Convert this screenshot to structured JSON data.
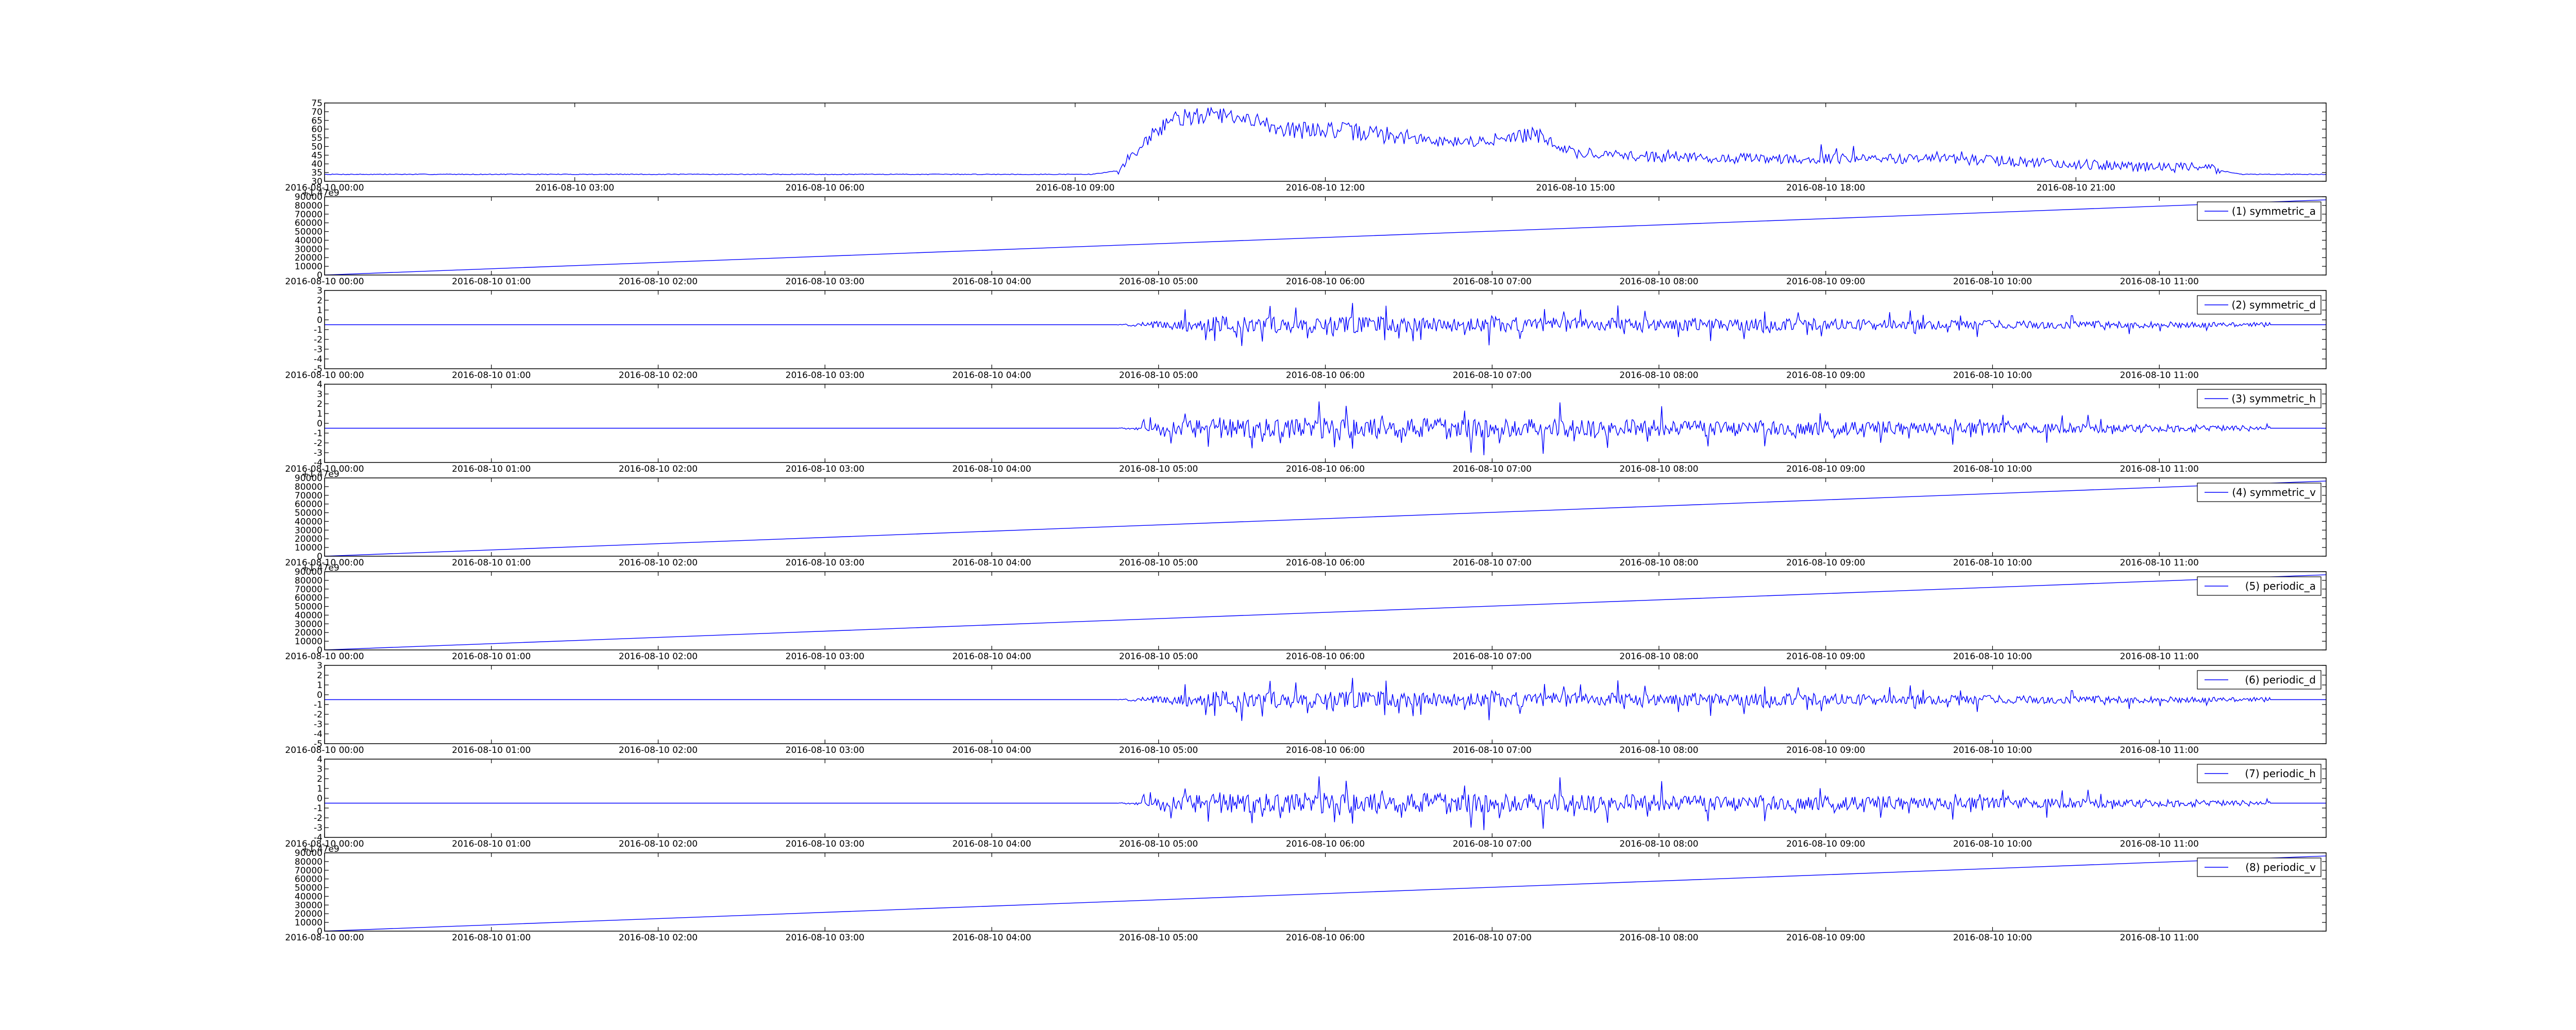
{
  "colors": {
    "line": "#0000ff",
    "axes": "#000000",
    "background": "#ffffff",
    "legend_border": "#000000"
  },
  "chart_data": [
    {
      "type": "line",
      "panel": "top",
      "legend": null,
      "offset_label": "",
      "ylim": [
        30,
        75
      ],
      "yticks": [
        "30",
        "35",
        "40",
        "45",
        "50",
        "55",
        "60",
        "65",
        "70",
        "75"
      ],
      "xticks": [
        "2016-08-10 00:00",
        "2016-08-10 03:00",
        "2016-08-10 06:00",
        "2016-08-10 09:00",
        "2016-08-10 12:00",
        "2016-08-10 15:00",
        "2016-08-10 18:00",
        "2016-08-10 21:00"
      ],
      "x_start": "2016-08-10 00:00",
      "x_end": "2016-08-11 00:00",
      "series": [
        {
          "x": [
            "2016-08-10 00:00",
            "2016-08-10 09:12",
            "2016-08-10 09:30",
            "2016-08-10 09:50",
            "2016-08-10 10:10",
            "2016-08-10 10:40",
            "2016-08-10 11:10",
            "2016-08-10 11:40",
            "2016-08-10 12:00",
            "2016-08-10 12:40",
            "2016-08-10 13:20",
            "2016-08-10 14:00",
            "2016-08-10 14:30",
            "2016-08-10 15:00",
            "2016-08-10 16:00",
            "2016-08-10 17:00",
            "2016-08-10 18:00",
            "2016-08-10 19:00",
            "2016-08-10 20:00",
            "2016-08-10 21:00",
            "2016-08-10 22:00",
            "2016-08-10 22:30",
            "2016-08-10 23:00",
            "2016-08-11 00:00"
          ],
          "y": [
            34,
            34,
            36,
            52,
            66,
            68,
            64,
            59,
            60,
            57,
            53,
            53,
            57,
            46,
            44,
            43,
            43,
            43,
            42,
            40,
            38,
            38,
            34,
            34
          ]
        }
      ]
    },
    {
      "type": "line",
      "panel": "symmetric_a",
      "legend": "(1) symmetric_a",
      "offset_label": "+1.47e9",
      "ylim": [
        0,
        90000
      ],
      "yticks": [
        "0",
        "10000",
        "20000",
        "30000",
        "40000",
        "50000",
        "60000",
        "70000",
        "80000",
        "90000"
      ],
      "xticks": [
        "2016-08-10 00:00",
        "2016-08-10 01:00",
        "2016-08-10 02:00",
        "2016-08-10 03:00",
        "2016-08-10 04:00",
        "2016-08-10 05:00",
        "2016-08-10 06:00",
        "2016-08-10 07:00",
        "2016-08-10 08:00",
        "2016-08-10 09:00",
        "2016-08-10 10:00",
        "2016-08-10 11:00"
      ],
      "x_start": "2016-08-10 00:00",
      "x_end": "2016-08-10 12:00",
      "series": [
        {
          "name": "(1) symmetric_a",
          "x": [
            "2016-08-10 00:00",
            "2016-08-10 12:00"
          ],
          "y": [
            0,
            86400
          ]
        }
      ]
    },
    {
      "type": "line",
      "panel": "symmetric_d",
      "legend": "(2) symmetric_d",
      "offset_label": "",
      "ylim": [
        -5,
        3
      ],
      "yticks": [
        "-5",
        "-4",
        "-3",
        "-2",
        "-1",
        "0",
        "1",
        "2",
        "3"
      ],
      "xticks": [
        "2016-08-10 00:00",
        "2016-08-10 01:00",
        "2016-08-10 02:00",
        "2016-08-10 03:00",
        "2016-08-10 04:00",
        "2016-08-10 05:00",
        "2016-08-10 06:00",
        "2016-08-10 07:00",
        "2016-08-10 08:00",
        "2016-08-10 09:00",
        "2016-08-10 10:00",
        "2016-08-10 11:00"
      ],
      "x_start": "2016-08-10 00:00",
      "x_end": "2016-08-10 12:00",
      "noise": {
        "start": "2016-08-10 04:45",
        "end": "2016-08-10 11:40",
        "baseline": -0.5,
        "max_amplitude": 2.5,
        "seed": 11
      },
      "series": [
        {
          "name": "(2) symmetric_d"
        }
      ]
    },
    {
      "type": "line",
      "panel": "symmetric_h",
      "legend": "(3) symmetric_h",
      "offset_label": "",
      "ylim": [
        -4,
        4
      ],
      "yticks": [
        "-4",
        "-3",
        "-2",
        "-1",
        "0",
        "1",
        "2",
        "3",
        "4"
      ],
      "xticks": [
        "2016-08-10 00:00",
        "2016-08-10 01:00",
        "2016-08-10 02:00",
        "2016-08-10 03:00",
        "2016-08-10 04:00",
        "2016-08-10 05:00",
        "2016-08-10 06:00",
        "2016-08-10 07:00",
        "2016-08-10 08:00",
        "2016-08-10 09:00",
        "2016-08-10 10:00",
        "2016-08-10 11:00"
      ],
      "x_start": "2016-08-10 00:00",
      "x_end": "2016-08-10 12:00",
      "noise": {
        "start": "2016-08-10 04:45",
        "end": "2016-08-10 11:40",
        "baseline": -0.5,
        "max_amplitude": 3.2,
        "seed": 23
      },
      "series": [
        {
          "name": "(3) symmetric_h"
        }
      ]
    },
    {
      "type": "line",
      "panel": "symmetric_v",
      "legend": "(4) symmetric_v",
      "offset_label": "+1.47e9",
      "ylim": [
        0,
        90000
      ],
      "yticks": [
        "0",
        "10000",
        "20000",
        "30000",
        "40000",
        "50000",
        "60000",
        "70000",
        "80000",
        "90000"
      ],
      "xticks": [
        "2016-08-10 00:00",
        "2016-08-10 01:00",
        "2016-08-10 02:00",
        "2016-08-10 03:00",
        "2016-08-10 04:00",
        "2016-08-10 05:00",
        "2016-08-10 06:00",
        "2016-08-10 07:00",
        "2016-08-10 08:00",
        "2016-08-10 09:00",
        "2016-08-10 10:00",
        "2016-08-10 11:00"
      ],
      "x_start": "2016-08-10 00:00",
      "x_end": "2016-08-10 12:00",
      "series": [
        {
          "name": "(4) symmetric_v",
          "x": [
            "2016-08-10 00:00",
            "2016-08-10 12:00"
          ],
          "y": [
            0,
            86400
          ]
        }
      ]
    },
    {
      "type": "line",
      "panel": "periodic_a",
      "legend": "(5) periodic_a",
      "offset_label": "+1.47e9",
      "ylim": [
        0,
        90000
      ],
      "yticks": [
        "0",
        "10000",
        "20000",
        "30000",
        "40000",
        "50000",
        "60000",
        "70000",
        "80000",
        "90000"
      ],
      "xticks": [
        "2016-08-10 00:00",
        "2016-08-10 01:00",
        "2016-08-10 02:00",
        "2016-08-10 03:00",
        "2016-08-10 04:00",
        "2016-08-10 05:00",
        "2016-08-10 06:00",
        "2016-08-10 07:00",
        "2016-08-10 08:00",
        "2016-08-10 09:00",
        "2016-08-10 10:00",
        "2016-08-10 11:00"
      ],
      "x_start": "2016-08-10 00:00",
      "x_end": "2016-08-10 12:00",
      "series": [
        {
          "name": "(5) periodic_a",
          "x": [
            "2016-08-10 00:00",
            "2016-08-10 12:00"
          ],
          "y": [
            0,
            86400
          ]
        }
      ]
    },
    {
      "type": "line",
      "panel": "periodic_d",
      "legend": "(6) periodic_d",
      "offset_label": "",
      "ylim": [
        -5,
        3
      ],
      "yticks": [
        "-5",
        "-4",
        "-3",
        "-2",
        "-1",
        "0",
        "1",
        "2",
        "3"
      ],
      "xticks": [
        "2016-08-10 00:00",
        "2016-08-10 01:00",
        "2016-08-10 02:00",
        "2016-08-10 03:00",
        "2016-08-10 04:00",
        "2016-08-10 05:00",
        "2016-08-10 06:00",
        "2016-08-10 07:00",
        "2016-08-10 08:00",
        "2016-08-10 09:00",
        "2016-08-10 10:00",
        "2016-08-10 11:00"
      ],
      "x_start": "2016-08-10 00:00",
      "x_end": "2016-08-10 12:00",
      "noise": {
        "start": "2016-08-10 04:45",
        "end": "2016-08-10 11:40",
        "baseline": -0.5,
        "max_amplitude": 2.5,
        "seed": 11
      },
      "series": [
        {
          "name": "(6) periodic_d"
        }
      ]
    },
    {
      "type": "line",
      "panel": "periodic_h",
      "legend": "(7) periodic_h",
      "offset_label": "",
      "ylim": [
        -4,
        4
      ],
      "yticks": [
        "-4",
        "-3",
        "-2",
        "-1",
        "0",
        "1",
        "2",
        "3",
        "4"
      ],
      "xticks": [
        "2016-08-10 00:00",
        "2016-08-10 01:00",
        "2016-08-10 02:00",
        "2016-08-10 03:00",
        "2016-08-10 04:00",
        "2016-08-10 05:00",
        "2016-08-10 06:00",
        "2016-08-10 07:00",
        "2016-08-10 08:00",
        "2016-08-10 09:00",
        "2016-08-10 10:00",
        "2016-08-10 11:00"
      ],
      "x_start": "2016-08-10 00:00",
      "x_end": "2016-08-10 12:00",
      "noise": {
        "start": "2016-08-10 04:45",
        "end": "2016-08-10 11:40",
        "baseline": -0.5,
        "max_amplitude": 3.2,
        "seed": 23
      },
      "series": [
        {
          "name": "(7) periodic_h"
        }
      ]
    },
    {
      "type": "line",
      "panel": "periodic_v",
      "legend": "(8) periodic_v",
      "offset_label": "+1.47e9",
      "ylim": [
        0,
        90000
      ],
      "yticks": [
        "0",
        "10000",
        "20000",
        "30000",
        "40000",
        "50000",
        "60000",
        "70000",
        "80000",
        "90000"
      ],
      "xticks": [
        "2016-08-10 00:00",
        "2016-08-10 01:00",
        "2016-08-10 02:00",
        "2016-08-10 03:00",
        "2016-08-10 04:00",
        "2016-08-10 05:00",
        "2016-08-10 06:00",
        "2016-08-10 07:00",
        "2016-08-10 08:00",
        "2016-08-10 09:00",
        "2016-08-10 10:00",
        "2016-08-10 11:00"
      ],
      "x_start": "2016-08-10 00:00",
      "x_end": "2016-08-10 12:00",
      "series": [
        {
          "name": "(8) periodic_v",
          "x": [
            "2016-08-10 00:00",
            "2016-08-10 12:00"
          ],
          "y": [
            0,
            86400
          ]
        }
      ]
    }
  ]
}
